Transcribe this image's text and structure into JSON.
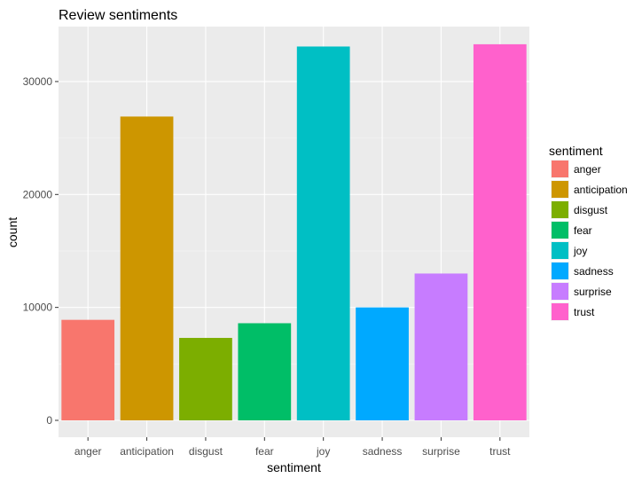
{
  "chart_data": {
    "type": "bar",
    "title": "Review sentiments",
    "xlabel": "sentiment",
    "ylabel": "count",
    "categories": [
      "anger",
      "anticipation",
      "disgust",
      "fear",
      "joy",
      "sadness",
      "surprise",
      "trust"
    ],
    "values": [
      8900,
      26900,
      7300,
      8600,
      33100,
      10000,
      13000,
      33300
    ],
    "colors": [
      "#F8766D",
      "#CD9600",
      "#7CAE00",
      "#00BE67",
      "#00BFC4",
      "#00A9FF",
      "#C77CFF",
      "#FF61CC"
    ],
    "ylim": [
      0,
      34000
    ],
    "yticks": [
      0,
      10000,
      20000,
      30000
    ],
    "grid": true,
    "legend": {
      "title": "sentiment",
      "position": "right",
      "entries": [
        "anger",
        "anticipation",
        "disgust",
        "fear",
        "joy",
        "sadness",
        "surprise",
        "trust"
      ]
    }
  },
  "colors": {
    "panel_background": "#EBEBEB",
    "grid_major": "#FFFFFF"
  }
}
